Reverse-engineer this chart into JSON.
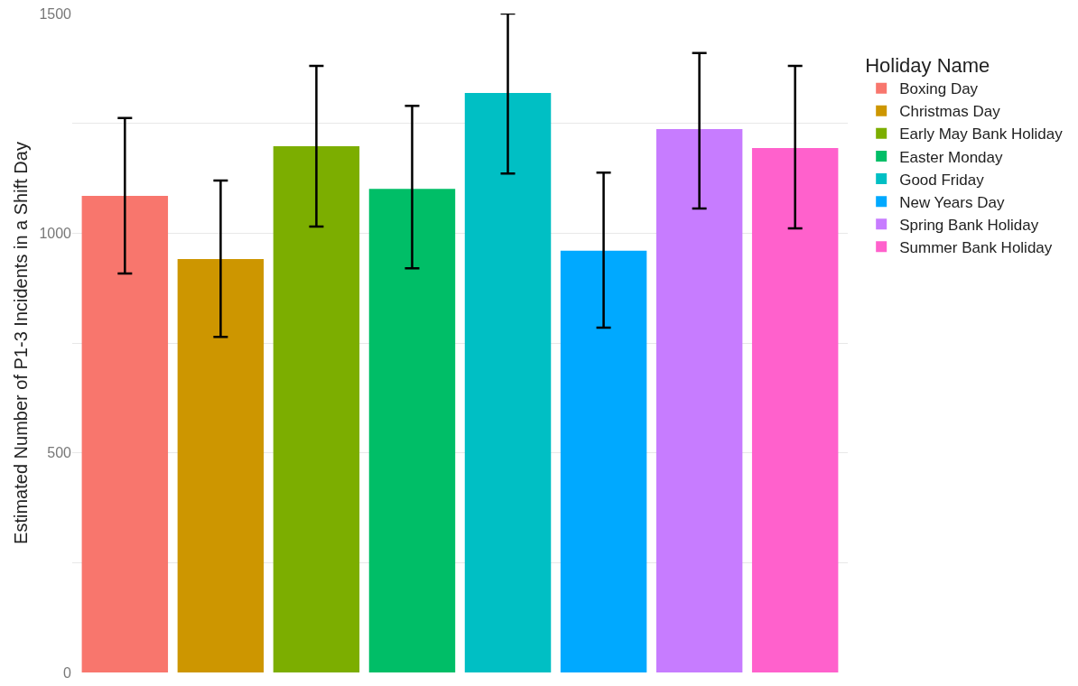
{
  "chart_data": {
    "type": "bar",
    "ylabel": "Estimated Number of P1-3 Incidents in a Shift Day",
    "legend_title": "Holiday Name",
    "categories": [
      null,
      null,
      null,
      null,
      null,
      null,
      null,
      null
    ],
    "series": [
      {
        "name": "Boxing Day",
        "color": "#f8766d",
        "values": [
          1085,
          null,
          null,
          null,
          null,
          null,
          null,
          null
        ],
        "errors": [
          [
            908,
            1262
          ],
          null,
          null,
          null,
          null,
          null,
          null,
          null
        ]
      },
      {
        "name": "Christmas Day",
        "color": "#cd9600",
        "values": [
          null,
          941,
          null,
          null,
          null,
          null,
          null,
          null
        ],
        "errors": [
          null,
          [
            764,
            1120
          ],
          null,
          null,
          null,
          null,
          null,
          null
        ]
      },
      {
        "name": "Early May Bank Holiday",
        "color": "#7cae00",
        "values": [
          null,
          null,
          1198,
          null,
          null,
          null,
          null,
          null
        ],
        "errors": [
          null,
          null,
          [
            1015,
            1381
          ],
          null,
          null,
          null,
          null,
          null
        ]
      },
      {
        "name": "Easter Monday",
        "color": "#00be67",
        "values": [
          null,
          null,
          null,
          1101,
          null,
          null,
          null,
          null
        ],
        "errors": [
          null,
          null,
          null,
          [
            920,
            1290
          ],
          null,
          null,
          null,
          null
        ]
      },
      {
        "name": "Good Friday",
        "color": "#00bfc4",
        "values": [
          null,
          null,
          null,
          null,
          1319,
          null,
          null,
          null
        ],
        "errors": [
          null,
          null,
          null,
          null,
          [
            1136,
            1500
          ],
          null,
          null,
          null
        ]
      },
      {
        "name": "New Years Day",
        "color": "#00a9ff",
        "values": [
          null,
          null,
          null,
          null,
          null,
          960,
          null,
          null
        ],
        "errors": [
          null,
          null,
          null,
          null,
          null,
          [
            785,
            1138
          ],
          null,
          null
        ]
      },
      {
        "name": "Spring Bank Holiday",
        "color": "#c77cff",
        "values": [
          null,
          null,
          null,
          null,
          null,
          null,
          1237,
          null
        ],
        "errors": [
          null,
          null,
          null,
          null,
          null,
          null,
          [
            1056,
            1410
          ],
          null
        ]
      },
      {
        "name": "Summer Bank Holiday",
        "color": "#ff61cc",
        "values": [
          null,
          null,
          null,
          null,
          null,
          null,
          null,
          1194
        ],
        "errors": [
          null,
          null,
          null,
          null,
          null,
          null,
          null,
          [
            1011,
            1381
          ]
        ]
      }
    ],
    "ylim": [
      0,
      1500
    ],
    "yticks": [
      0,
      {
        "value": 250,
        "label": null
      },
      500,
      {
        "value": 750,
        "label": null
      },
      1000,
      {
        "value": 1250,
        "label": null
      },
      1500
    ],
    "grid": "y",
    "legend": "right",
    "tick_labels": "y"
  }
}
